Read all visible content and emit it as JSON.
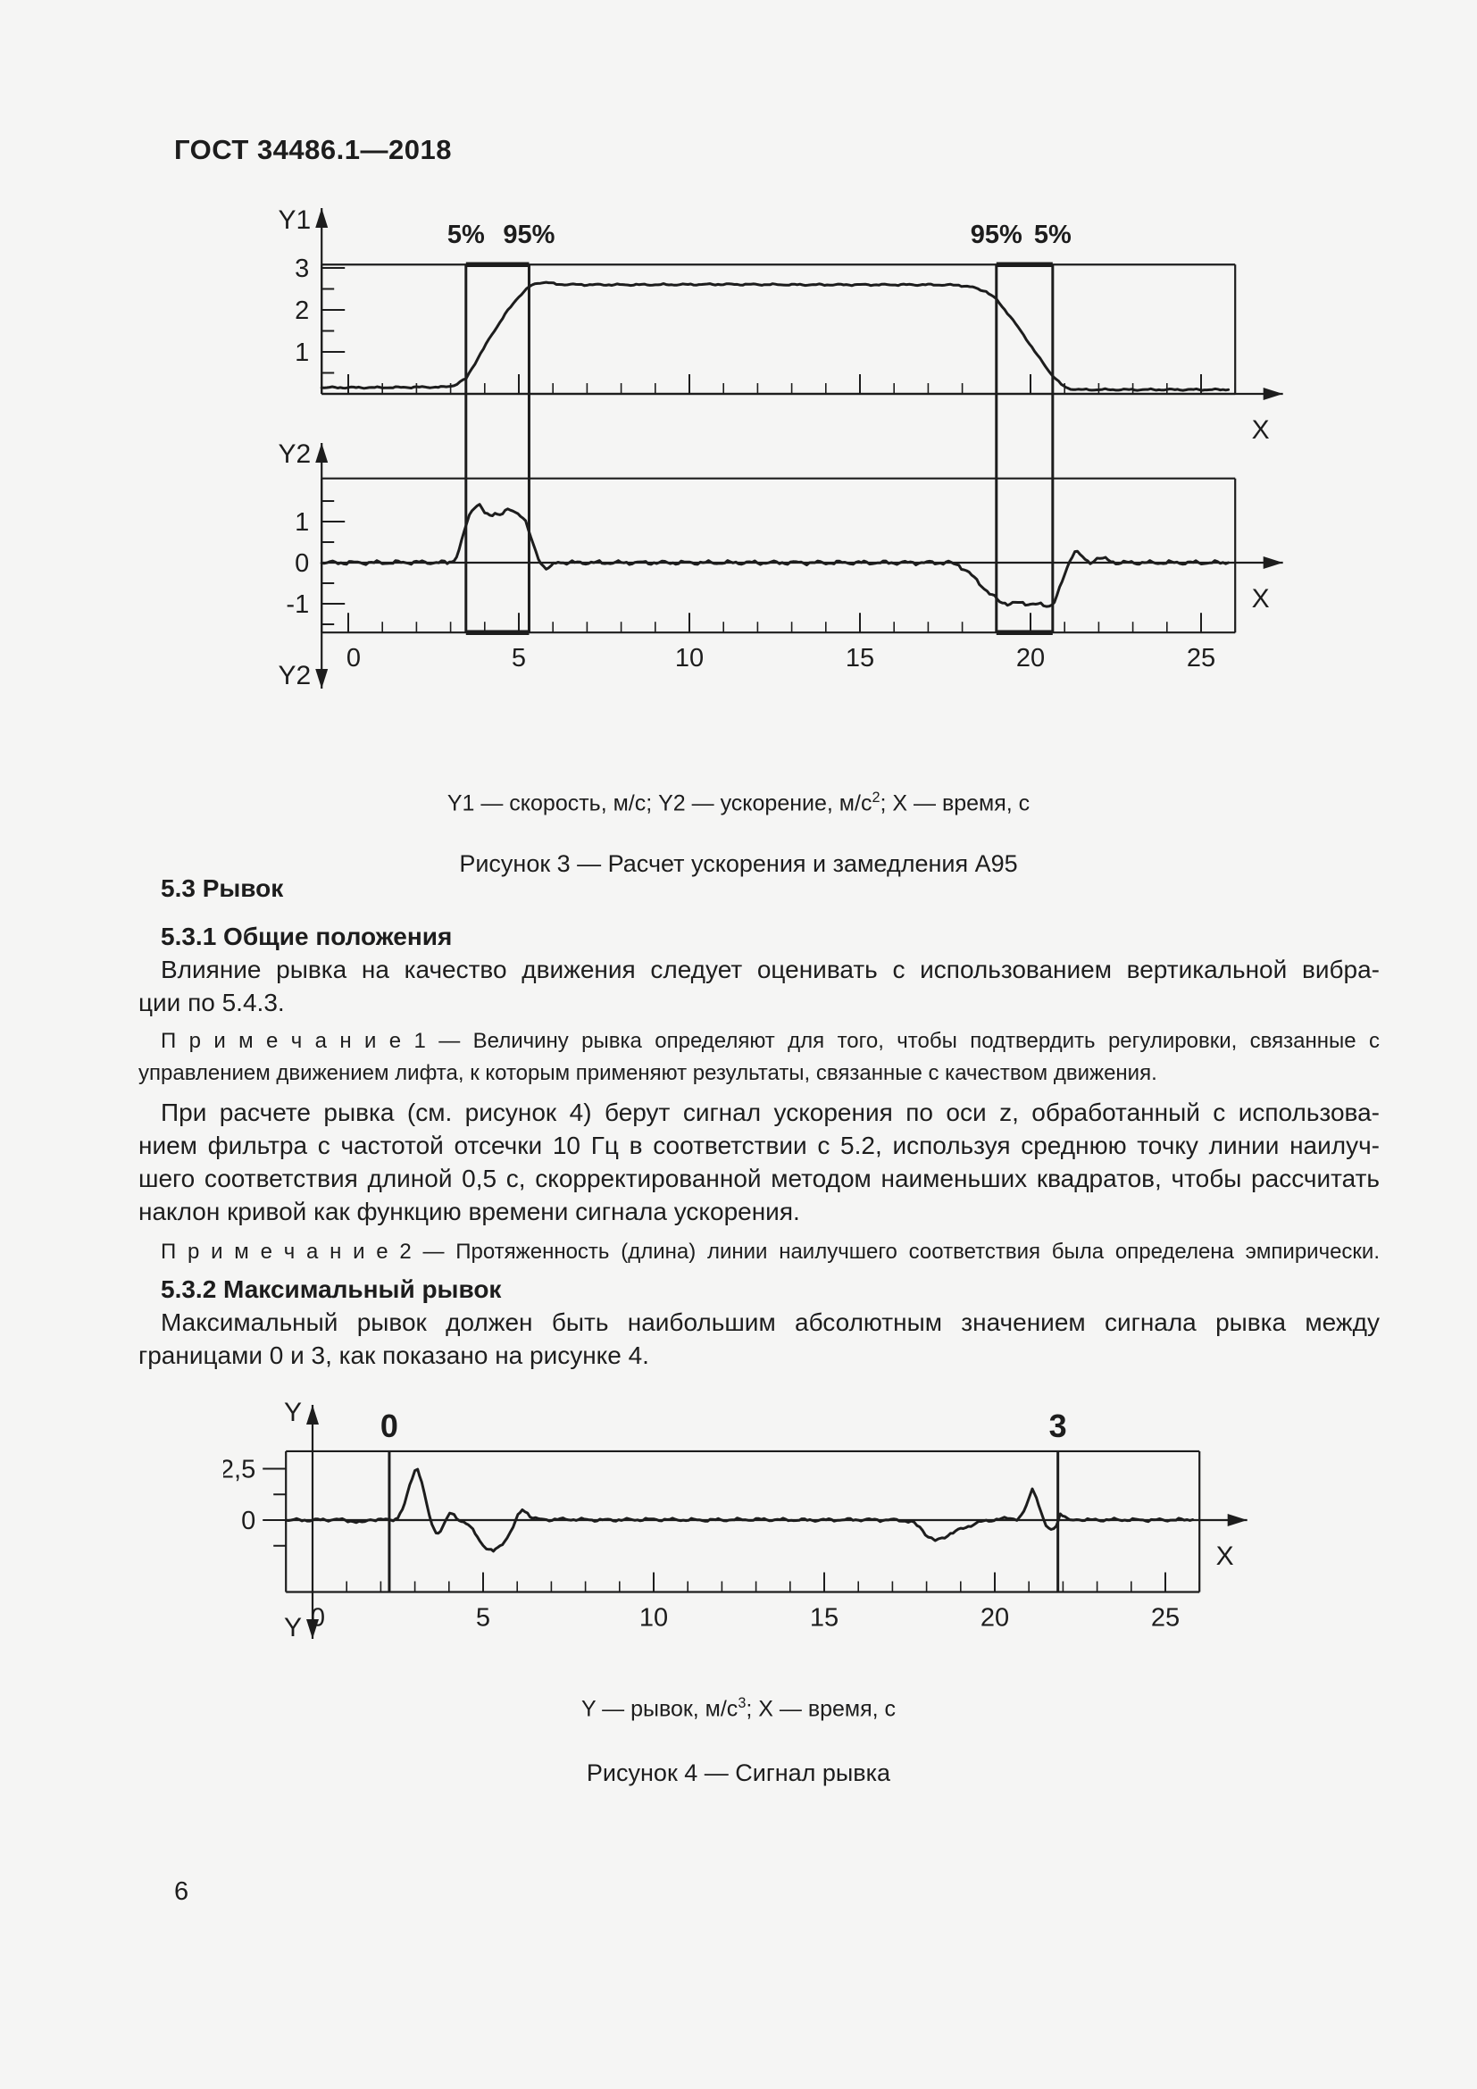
{
  "page": {
    "header": "ГОСТ 34486.1—2018",
    "number": "6",
    "background": "#f5f5f4",
    "ink_color": "#1d1d1d"
  },
  "sections": {
    "s53": "5.3 Рывок",
    "s531": "5.3.1 Общие положения",
    "p1": [
      "Влияние рывка на качество движения следует оценивать с использованием вертикальной вибра-",
      "ции по 5.4.3."
    ],
    "note1": [
      "П р и м е ч а н и е  1 — Величину рывка определяют для того, чтобы подтвердить регулировки, связанные с",
      "управлением движением лифта, к которым применяют результаты, связанные с качеством движения."
    ],
    "p2": [
      "При расчете рывка (см. рисунок 4) берут сигнал ускорения по оси z, обработанный с использова-",
      "нием фильтра с частотой отсечки 10 Гц в соответствии с 5.2, используя среднюю точку линии наилуч-",
      "шего соответствия длиной 0,5 с, скорректированной методом наименьших квадратов, чтобы рассчитать",
      "наклон кривой как функцию времени сигнала ускорения."
    ],
    "note2": "П р и м е ч а н и е  2 — Протяженность (длина) линии наилучшего соответствия была определена эмпирически.",
    "s532": "5.3.2 Максимальный рывок",
    "p3": [
      "Максимальный рывок должен быть наибольшим абсолютным значением сигнала рывка между",
      "границами 0 и 3, как показано на рисунке 4."
    ]
  },
  "fig3": {
    "legend_parts": [
      "Y1 — скорость, м/с; Y2 — ускорение, м/с",
      "2",
      "; X — время, с"
    ],
    "title": "Рисунок 3 — Расчет ускорения и замедления А95"
  },
  "fig4": {
    "legend_parts": [
      "Y — рывок, м/с",
      "3",
      "; X — время, с"
    ],
    "title": "Рисунок 4 — Сигнал рывка"
  },
  "chart_data": [
    {
      "id": "fig3",
      "type": "line",
      "title": "Рисунок 3 — Расчет ускорения и замедления А95",
      "x": {
        "lim": [
          -0.78,
          26
        ],
        "arrow_to": 27.4,
        "axis_name": "X",
        "unit": "время, с",
        "tick_labels": [
          {
            "v": 0,
            "t": "0"
          },
          {
            "v": 5,
            "t": "5"
          },
          {
            "v": 10,
            "t": "10"
          },
          {
            "v": 15,
            "t": "15"
          },
          {
            "v": 20,
            "t": "20"
          },
          {
            "v": 25,
            "t": "25"
          }
        ]
      },
      "markers": [
        {
          "x": 3.45,
          "label": "5%"
        },
        {
          "x": 5.3,
          "label": "95%"
        },
        {
          "x": 19.0,
          "label": "95%"
        },
        {
          "x": 20.65,
          "label": "5%"
        }
      ],
      "panels": [
        {
          "name": "velocity",
          "axis_name": "Y1",
          "unit": "скорость, м/с",
          "ylim": [
            0,
            3.08
          ],
          "yticks": [
            {
              "v": 1,
              "t": "1"
            },
            {
              "v": 2,
              "t": "2"
            },
            {
              "v": 3,
              "t": "3"
            }
          ],
          "yminor": [
            0.5,
            1.5,
            2.5
          ],
          "noise": 0.012,
          "x_labels": false,
          "points": [
            [
              -0.78,
              0.15
            ],
            [
              0,
              0.15
            ],
            [
              1,
              0.15
            ],
            [
              2,
              0.16
            ],
            [
              2.8,
              0.16
            ],
            [
              3.1,
              0.2
            ],
            [
              3.45,
              0.36
            ],
            [
              3.8,
              0.85
            ],
            [
              4.2,
              1.4
            ],
            [
              4.6,
              1.9
            ],
            [
              5.0,
              2.32
            ],
            [
              5.3,
              2.55
            ],
            [
              5.55,
              2.64
            ],
            [
              5.8,
              2.66
            ],
            [
              6.1,
              2.61
            ],
            [
              7,
              2.6
            ],
            [
              9,
              2.6
            ],
            [
              11,
              2.61
            ],
            [
              13,
              2.6
            ],
            [
              15,
              2.6
            ],
            [
              17,
              2.6
            ],
            [
              17.9,
              2.59
            ],
            [
              18.3,
              2.54
            ],
            [
              18.7,
              2.44
            ],
            [
              19.0,
              2.25
            ],
            [
              19.4,
              1.85
            ],
            [
              19.8,
              1.4
            ],
            [
              20.2,
              0.92
            ],
            [
              20.6,
              0.48
            ],
            [
              20.9,
              0.22
            ],
            [
              21.1,
              0.13
            ],
            [
              21.4,
              0.1
            ],
            [
              22.5,
              0.1
            ],
            [
              24,
              0.1
            ],
            [
              25.8,
              0.1
            ]
          ]
        },
        {
          "name": "acceleration",
          "axis_name": "Y2",
          "unit": "ускорение, м/с2",
          "ylim": [
            -1.7,
            2.05
          ],
          "yticks": [
            {
              "v": 1,
              "t": "1"
            },
            {
              "v": 0,
              "t": "0"
            },
            {
              "v": -1,
              "t": "-1"
            }
          ],
          "yminor": [
            1.5,
            0.5,
            -0.5,
            -1.5
          ],
          "noise": 0.03,
          "x_labels": true,
          "points": [
            [
              -0.78,
              0.0
            ],
            [
              1,
              0.0
            ],
            [
              2,
              0.01
            ],
            [
              2.9,
              0.0
            ],
            [
              3.1,
              0.06
            ],
            [
              3.25,
              0.3
            ],
            [
              3.4,
              0.75
            ],
            [
              3.55,
              1.15
            ],
            [
              3.7,
              1.38
            ],
            [
              3.85,
              1.42
            ],
            [
              4.0,
              1.2
            ],
            [
              4.15,
              1.12
            ],
            [
              4.3,
              1.22
            ],
            [
              4.45,
              1.18
            ],
            [
              4.6,
              1.25
            ],
            [
              4.75,
              1.27
            ],
            [
              4.9,
              1.23
            ],
            [
              5.05,
              1.18
            ],
            [
              5.2,
              1.0
            ],
            [
              5.35,
              0.6
            ],
            [
              5.5,
              0.25
            ],
            [
              5.65,
              0.0
            ],
            [
              5.8,
              -0.15
            ],
            [
              5.95,
              -0.1
            ],
            [
              6.15,
              0.02
            ],
            [
              6.4,
              0.0
            ],
            [
              8,
              0.0
            ],
            [
              10,
              0.0
            ],
            [
              12,
              0.0
            ],
            [
              14,
              0.0
            ],
            [
              16,
              0.0
            ],
            [
              17.6,
              0.0
            ],
            [
              17.9,
              -0.06
            ],
            [
              18.2,
              -0.25
            ],
            [
              18.5,
              -0.5
            ],
            [
              18.8,
              -0.75
            ],
            [
              19.1,
              -0.95
            ],
            [
              19.4,
              -1.0
            ],
            [
              19.7,
              -0.98
            ],
            [
              20.0,
              -1.0
            ],
            [
              20.3,
              -1.03
            ],
            [
              20.55,
              -1.05
            ],
            [
              20.7,
              -0.95
            ],
            [
              20.85,
              -0.65
            ],
            [
              21.0,
              -0.3
            ],
            [
              21.15,
              0.05
            ],
            [
              21.3,
              0.3
            ],
            [
              21.45,
              0.2
            ],
            [
              21.6,
              0.05
            ],
            [
              21.75,
              0.0
            ],
            [
              21.95,
              0.12
            ],
            [
              22.2,
              0.08
            ],
            [
              22.5,
              0.0
            ],
            [
              23.5,
              0.0
            ],
            [
              25.8,
              0.0
            ]
          ]
        }
      ]
    },
    {
      "id": "fig4",
      "type": "line",
      "title": "Рисунок 4 — Сигнал рывка",
      "x": {
        "lim": [
          -0.78,
          26
        ],
        "arrow_to": 27.4,
        "axis_name": "X",
        "unit": "время, с",
        "tick_labels": [
          {
            "v": 0,
            "t": "0"
          },
          {
            "v": 5,
            "t": "5"
          },
          {
            "v": 10,
            "t": "10"
          },
          {
            "v": 15,
            "t": "15"
          },
          {
            "v": 20,
            "t": "20"
          },
          {
            "v": 25,
            "t": "25"
          }
        ]
      },
      "markers": [
        {
          "x": 2.25,
          "label": "0"
        },
        {
          "x": 21.85,
          "label": "3"
        }
      ],
      "panels": [
        {
          "name": "jerk",
          "axis_name": "Y",
          "unit": "рывок, м/с3",
          "ylim": [
            -3.5,
            3.35
          ],
          "yticks": [
            {
              "v": 2.5,
              "t": "2,5"
            },
            {
              "v": 0,
              "t": "0"
            }
          ],
          "yminor": [
            1.25,
            -1.25
          ],
          "noise": 0.045,
          "x_labels": true,
          "points": [
            [
              -0.78,
              0.0
            ],
            [
              0,
              0.0
            ],
            [
              0.7,
              0.03
            ],
            [
              1.2,
              -0.05
            ],
            [
              1.45,
              -0.14
            ],
            [
              1.7,
              0.04
            ],
            [
              2.0,
              0.02
            ],
            [
              2.3,
              0.0
            ],
            [
              2.5,
              0.12
            ],
            [
              2.7,
              0.75
            ],
            [
              2.85,
              1.7
            ],
            [
              3.0,
              2.42
            ],
            [
              3.08,
              2.5
            ],
            [
              3.2,
              1.9
            ],
            [
              3.35,
              0.7
            ],
            [
              3.5,
              -0.25
            ],
            [
              3.62,
              -0.63
            ],
            [
              3.75,
              -0.5
            ],
            [
              3.9,
              -0.05
            ],
            [
              4.02,
              0.3
            ],
            [
              4.15,
              0.22
            ],
            [
              4.3,
              0.0
            ],
            [
              4.5,
              -0.12
            ],
            [
              4.7,
              -0.5
            ],
            [
              4.9,
              -1.0
            ],
            [
              5.1,
              -1.38
            ],
            [
              5.3,
              -1.52
            ],
            [
              5.5,
              -1.28
            ],
            [
              5.7,
              -0.85
            ],
            [
              5.88,
              -0.35
            ],
            [
              6.02,
              0.2
            ],
            [
              6.15,
              0.52
            ],
            [
              6.3,
              0.35
            ],
            [
              6.45,
              0.1
            ],
            [
              6.7,
              0.02
            ],
            [
              7.5,
              0.04
            ],
            [
              8.5,
              0.0
            ],
            [
              10,
              0.03
            ],
            [
              11.5,
              0.0
            ],
            [
              13,
              0.03
            ],
            [
              14.5,
              0.0
            ],
            [
              16,
              0.02
            ],
            [
              17.2,
              0.0
            ],
            [
              17.55,
              -0.08
            ],
            [
              17.8,
              -0.35
            ],
            [
              18.05,
              -0.8
            ],
            [
              18.25,
              -1.0
            ],
            [
              18.45,
              -0.9
            ],
            [
              18.7,
              -0.65
            ],
            [
              19.0,
              -0.45
            ],
            [
              19.3,
              -0.25
            ],
            [
              19.6,
              -0.08
            ],
            [
              19.9,
              0.0
            ],
            [
              20.2,
              0.05
            ],
            [
              20.45,
              0.1
            ],
            [
              20.65,
              0.04
            ],
            [
              20.85,
              0.35
            ],
            [
              21.0,
              1.05
            ],
            [
              21.1,
              1.5
            ],
            [
              21.22,
              1.15
            ],
            [
              21.35,
              0.4
            ],
            [
              21.5,
              -0.3
            ],
            [
              21.65,
              -0.52
            ],
            [
              21.8,
              -0.25
            ],
            [
              21.92,
              0.3
            ],
            [
              22.05,
              0.18
            ],
            [
              22.2,
              -0.06
            ],
            [
              22.4,
              0.04
            ],
            [
              22.8,
              0.0
            ],
            [
              23.5,
              0.02
            ],
            [
              24.5,
              0.0
            ],
            [
              25.8,
              0.02
            ]
          ]
        }
      ]
    }
  ]
}
